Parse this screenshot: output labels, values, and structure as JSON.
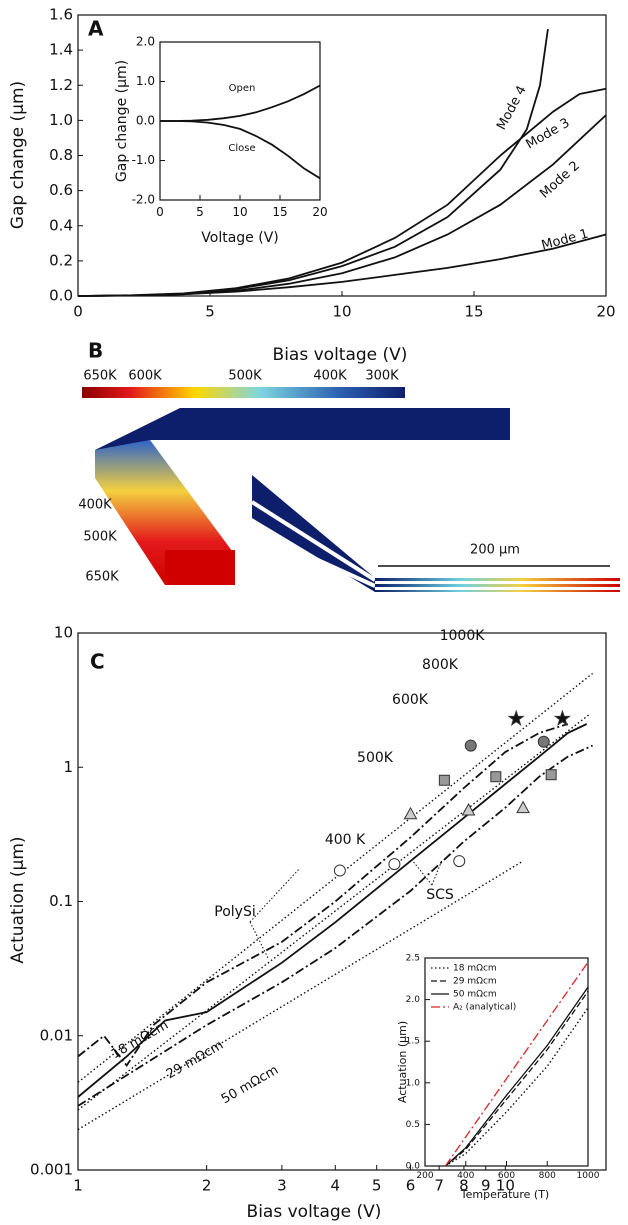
{
  "chart_data": [
    {
      "type": "line",
      "panel": "A",
      "xlabel": "Bias voltage (V)",
      "ylabel": "Gap change (μm)",
      "xlim": [
        0,
        20
      ],
      "ylim": [
        0,
        1.6
      ],
      "xticks": [
        0,
        5,
        10,
        15,
        20
      ],
      "yticks": [
        {
          "value": 0,
          "label": "0.0"
        },
        0.2,
        0.4,
        0.6,
        0.8,
        {
          "value": 1,
          "label": "1.0"
        },
        1.2,
        1.4,
        1.6
      ],
      "series": [
        {
          "name": "Mode 1",
          "color": "#111",
          "style": "solid",
          "x": [
            0,
            2,
            4,
            6,
            8,
            10,
            12,
            14,
            16,
            18,
            20
          ],
          "values": [
            0,
            0.003,
            0.01,
            0.025,
            0.05,
            0.08,
            0.12,
            0.16,
            0.21,
            0.27,
            0.35
          ]
        },
        {
          "name": "Mode 2",
          "color": "#111",
          "style": "solid",
          "x": [
            0,
            2,
            4,
            6,
            8,
            10,
            12,
            14,
            16,
            18,
            20
          ],
          "values": [
            0,
            0.003,
            0.01,
            0.03,
            0.07,
            0.13,
            0.22,
            0.35,
            0.52,
            0.75,
            1.03
          ]
        },
        {
          "name": "Mode 3",
          "color": "#111",
          "style": "solid",
          "x": [
            0,
            2,
            4,
            6,
            8,
            10,
            12,
            14,
            16,
            18,
            19,
            20
          ],
          "values": [
            0,
            0.004,
            0.015,
            0.045,
            0.1,
            0.19,
            0.33,
            0.52,
            0.8,
            1.05,
            1.15,
            1.18
          ]
        },
        {
          "name": "Mode 4",
          "color": "#111",
          "style": "solid",
          "x": [
            0,
            2,
            4,
            6,
            8,
            10,
            12,
            14,
            16,
            17,
            17.5,
            17.8
          ],
          "values": [
            0,
            0.003,
            0.012,
            0.04,
            0.09,
            0.17,
            0.28,
            0.45,
            0.72,
            0.95,
            1.2,
            1.52
          ]
        }
      ]
    },
    {
      "type": "line",
      "xlabel": "Voltage (V)",
      "ylabel": "Gap change (μm)",
      "xlim": [
        0,
        20
      ],
      "ylim": [
        -2,
        2
      ],
      "xticks": [
        0,
        5,
        10,
        15,
        20
      ],
      "yticks": [
        {
          "value": 2,
          "label": "2.0"
        },
        {
          "value": 1,
          "label": "1.0"
        },
        {
          "value": 0,
          "label": "0.0"
        },
        {
          "value": -1,
          "label": "-1.0"
        },
        {
          "value": -2,
          "label": "-2.0"
        }
      ],
      "series": [
        {
          "name": "Open",
          "color": "#111",
          "style": "solid",
          "x": [
            0,
            2,
            4,
            6,
            8,
            10,
            12,
            14,
            16,
            18,
            20
          ],
          "values": [
            0,
            0,
            0.01,
            0.03,
            0.07,
            0.13,
            0.22,
            0.35,
            0.5,
            0.68,
            0.9
          ]
        },
        {
          "name": "Close",
          "color": "#111",
          "style": "solid",
          "x": [
            0,
            2,
            4,
            6,
            8,
            10,
            12,
            14,
            16,
            18,
            20
          ],
          "values": [
            0,
            0,
            -0.01,
            -0.04,
            -0.1,
            -0.2,
            -0.38,
            -0.6,
            -0.88,
            -1.2,
            -1.45
          ]
        }
      ]
    },
    {
      "type": "line",
      "panel": "C",
      "xlabel": "Bias voltage (V)",
      "ylabel": "Actuation (μm)",
      "xlog": true,
      "ylog": true,
      "xlim": [
        1,
        17.2
      ],
      "ylim": [
        0.001,
        10
      ],
      "xticks": [
        1,
        2,
        3,
        4,
        5,
        6,
        7,
        8,
        9,
        10
      ],
      "yticks": [
        0.001,
        0.01,
        0.1,
        1,
        10
      ],
      "annotations": [
        "PolySi",
        "SCS",
        "400 K",
        "500K",
        "600K",
        "800K",
        "1000K"
      ],
      "series": [
        {
          "name": "18 mΩcm",
          "color": "#111",
          "style": "dotted",
          "x": [
            1,
            16
          ],
          "values": [
            0.0045,
            5
          ]
        },
        {
          "name": "29 mΩcm",
          "color": "#111",
          "style": "dotted",
          "x": [
            1,
            15.8
          ],
          "values": [
            0.0028,
            2.5
          ]
        },
        {
          "name": "50 mΩcm",
          "color": "#111",
          "style": "dotted",
          "x": [
            1,
            11
          ],
          "values": [
            0.002,
            0.2
          ]
        },
        {
          "color": "#111",
          "style": "dashdot",
          "x": [
            1,
            1.15,
            1.3,
            1.5,
            2,
            3,
            4,
            6,
            8,
            10,
            12,
            14
          ],
          "values": [
            0.007,
            0.01,
            0.006,
            0.012,
            0.025,
            0.05,
            0.1,
            0.3,
            0.7,
            1.3,
            1.8,
            2.1
          ]
        },
        {
          "color": "#111",
          "style": "solid",
          "x": [
            1,
            1.3,
            1.6,
            2,
            3,
            4,
            6,
            8,
            10,
            12,
            14,
            15.5
          ],
          "values": [
            0.0035,
            0.007,
            0.013,
            0.015,
            0.035,
            0.07,
            0.2,
            0.42,
            0.75,
            1.2,
            1.8,
            2.1
          ]
        },
        {
          "color": "#111",
          "style": "dashdot",
          "x": [
            1,
            2,
            3,
            4,
            6,
            8,
            10,
            12,
            14,
            16
          ],
          "values": [
            0.003,
            0.012,
            0.025,
            0.045,
            0.12,
            0.28,
            0.5,
            0.85,
            1.2,
            1.45
          ]
        },
        {
          "marker": "circle-open",
          "color": "#111",
          "x": [
            4.1,
            5.5,
            7.8
          ],
          "values": [
            0.17,
            0.19,
            0.2
          ]
        },
        {
          "marker": "triangle",
          "color": "#ccc",
          "x": [
            6,
            8.2,
            11
          ],
          "values": [
            0.45,
            0.48,
            0.5
          ]
        },
        {
          "marker": "square",
          "color": "#999",
          "x": [
            7.2,
            9.5,
            12.8
          ],
          "values": [
            0.8,
            0.85,
            0.88
          ]
        },
        {
          "marker": "circle",
          "color": "#777",
          "x": [
            8.3,
            12.3
          ],
          "values": [
            1.45,
            1.55
          ]
        },
        {
          "marker": "star",
          "color": "#111",
          "x": [
            10.6,
            13.6
          ],
          "values": [
            2.3,
            2.3
          ]
        }
      ]
    },
    {
      "type": "line",
      "xlabel": "Temperature (T)",
      "ylabel": "Actuation (μm)",
      "legend": "upper left",
      "xlim": [
        200,
        1000
      ],
      "ylim": [
        0,
        2.5
      ],
      "xticks": [
        200,
        400,
        600,
        800,
        1000
      ],
      "yticks": [
        {
          "value": 0,
          "label": "0.0"
        },
        0.5,
        {
          "value": 1,
          "label": "1.0"
        },
        1.5,
        {
          "value": 2,
          "label": "2.0"
        },
        2.5
      ],
      "series": [
        {
          "name": "18 mΩcm",
          "color": "#111",
          "style": "dotted",
          "x": [
            300,
            400,
            600,
            800,
            1000
          ],
          "values": [
            0,
            0.15,
            0.65,
            1.2,
            1.9
          ]
        },
        {
          "name": "29 mΩcm",
          "color": "#111",
          "style": "dashed",
          "x": [
            300,
            400,
            600,
            800,
            1000
          ],
          "values": [
            0,
            0.2,
            0.8,
            1.4,
            2.1
          ]
        },
        {
          "name": "50 mΩcm",
          "color": "#111",
          "style": "solid",
          "x": [
            300,
            400,
            600,
            800,
            1000
          ],
          "values": [
            0,
            0.22,
            0.85,
            1.45,
            2.15
          ]
        },
        {
          "name": "A₂ (analytical)",
          "color": "#d62728",
          "style": "dashdot",
          "x": [
            300,
            1000
          ],
          "values": [
            0,
            2.45
          ]
        }
      ]
    }
  ],
  "thermal_panel": {
    "panel": "B",
    "colorbar_labels": [
      "650K",
      "600K",
      "500K",
      "400K",
      "300K"
    ],
    "side_labels": [
      "400K",
      "500K",
      "650K"
    ],
    "scale_bar": "200 μm"
  }
}
